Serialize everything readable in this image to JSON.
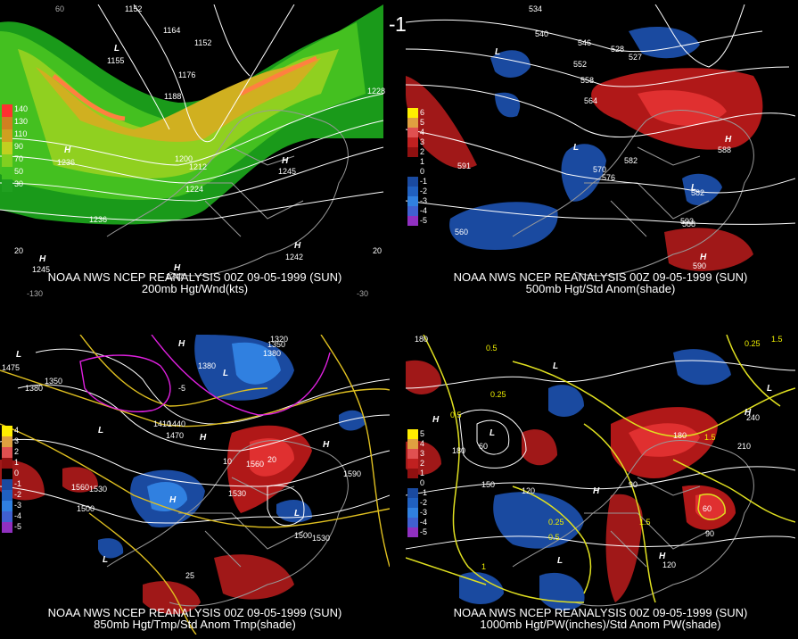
{
  "header": {
    "title": "00Z 09-05-1999 (SUN)"
  },
  "panels": [
    {
      "id": "200mb",
      "caption1": "NOAA NWS NCEP REANALYSIS 00Z 09-05-1999 (SUN)",
      "caption2": "200mb Hgt/Wnd(kts)",
      "legend": [
        "140",
        "130",
        "110",
        "90",
        "70",
        "50",
        "30"
      ],
      "legend_colors": [
        "#ff3030",
        "#d08020",
        "#d0a020",
        "#c0d020",
        "#80d020",
        "#40c020",
        "#20a020"
      ],
      "contour_labels": [
        "1152",
        "1164",
        "1152",
        "1176",
        "1188",
        "1200",
        "1212",
        "1224",
        "1236",
        "1228",
        "1155",
        "1236",
        "1245",
        "1242",
        "1245",
        "1247",
        "20",
        "20",
        "-130",
        "-30",
        "60"
      ],
      "pressure_symbols": [
        "L",
        "H",
        "H",
        "H",
        "H",
        "H",
        "H"
      ]
    },
    {
      "id": "500mb",
      "caption1": "NOAA NWS NCEP REANALYSIS 00Z 09-05-1999 (SUN)",
      "caption2": "500mb Hgt/Std Anom(shade)",
      "legend": [
        "6",
        "5",
        "4",
        "3",
        "2",
        "1",
        "0",
        "-1",
        "-2",
        "-3",
        "-4",
        "-5"
      ],
      "contour_labels": [
        "534",
        "540",
        "546",
        "552",
        "558",
        "564",
        "570",
        "576",
        "582",
        "588",
        "528",
        "527",
        "560",
        "591",
        "582",
        "588",
        "593",
        "590"
      ],
      "pressure_symbols": [
        "L",
        "L",
        "L",
        "H",
        "H",
        "H",
        "L"
      ]
    },
    {
      "id": "850mb",
      "caption1": "NOAA NWS NCEP REANALYSIS 00Z 09-05-1999 (SUN)",
      "caption2": "850mb Hgt/Tmp/Std Anom Tmp(shade)",
      "legend": [
        "4",
        "3",
        "2",
        "1",
        "0",
        "-1",
        "-2",
        "-3",
        "-4",
        "-5"
      ],
      "contour_labels": [
        "1320",
        "1350",
        "1380",
        "1380",
        "1350",
        "1380",
        "1410",
        "1440",
        "1470",
        "1530",
        "1560",
        "1590",
        "1560",
        "1530",
        "1500",
        "1500",
        "1530",
        "20",
        "25",
        "10",
        "-5",
        "1475"
      ],
      "pressure_symbols": [
        "L",
        "L",
        "L",
        "H",
        "H",
        "H",
        "L",
        "H",
        "L"
      ]
    },
    {
      "id": "1000mb",
      "caption1": "NOAA NWS NCEP REANALYSIS 00Z 09-05-1999 (SUN)",
      "caption2": "1000mb Hgt/PW(inches)/Std Anom PW(shade)",
      "legend": [
        "5",
        "4",
        "3",
        "2",
        "1",
        "0",
        "-1",
        "-2",
        "-3",
        "-4",
        "-5"
      ],
      "contour_labels": [
        "180",
        "0.5",
        "0.25",
        "0.5",
        "1.5",
        "1.5",
        "0.25",
        "60",
        "180",
        "150",
        "120",
        "90",
        "120",
        "0.25",
        "0.5",
        "1",
        "1.5",
        "60",
        "90",
        "180",
        "210",
        "240"
      ],
      "pressure_symbols": [
        "L",
        "H",
        "L",
        "H",
        "H",
        "L",
        "L",
        "H"
      ]
    }
  ]
}
